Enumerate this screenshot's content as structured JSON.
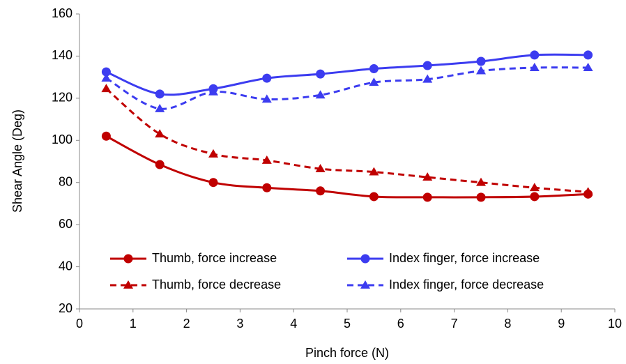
{
  "chart_data": {
    "type": "line",
    "x_label": "Pinch force (N)",
    "y_label": "Shear Angle (Deg)",
    "x": [
      0.5,
      1.5,
      2.5,
      3.5,
      4.5,
      5.5,
      6.5,
      7.5,
      8.5,
      9.5
    ],
    "series": [
      {
        "name": "Thumb, force increase",
        "color": "#c00000",
        "dashed": false,
        "marker": "circle",
        "values": [
          102,
          88.5,
          80,
          77.5,
          76,
          73.3,
          73,
          73,
          73.3,
          74.5
        ]
      },
      {
        "name": "Index finger, force increase",
        "color": "#3c3cf0",
        "dashed": false,
        "marker": "circle",
        "values": [
          132.5,
          122,
          124.5,
          129.5,
          131.5,
          134,
          135.5,
          137.5,
          140.5,
          140.5
        ]
      },
      {
        "name": "Thumb, force decrease",
        "color": "#c00000",
        "dashed": true,
        "marker": "triangle",
        "values": [
          124.5,
          103,
          93.5,
          90.5,
          86.5,
          85,
          82.5,
          80,
          77.5,
          75.5
        ]
      },
      {
        "name": "Index finger, force decrease",
        "color": "#3c3cf0",
        "dashed": true,
        "marker": "triangle",
        "values": [
          129.5,
          115,
          123,
          119.5,
          121.5,
          127.5,
          129,
          133,
          134.5,
          134.5
        ]
      }
    ],
    "xlim": [
      0,
      10
    ],
    "xticks": [
      0,
      1,
      2,
      3,
      4,
      5,
      6,
      7,
      8,
      9,
      10
    ],
    "ylim": [
      20,
      160
    ],
    "yticks": [
      20,
      40,
      60,
      80,
      100,
      120,
      140,
      160
    ],
    "grid": false,
    "smooth": true,
    "legend": "lower"
  }
}
